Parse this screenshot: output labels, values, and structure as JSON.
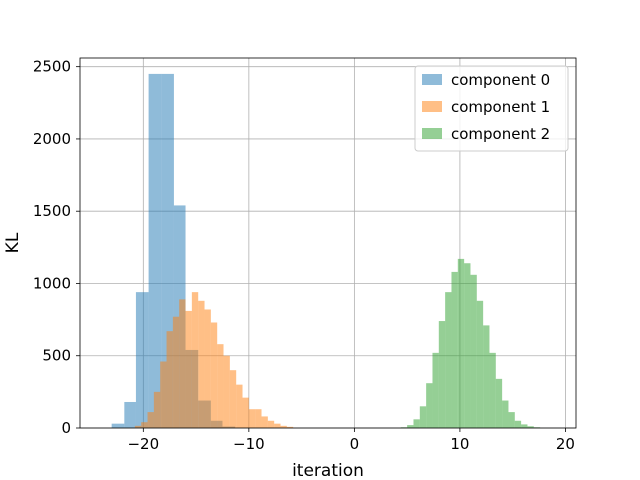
{
  "chart_data": {
    "type": "histogram",
    "title": "",
    "xlabel": "iteration",
    "ylabel": "KL",
    "xlim": [
      -26,
      21
    ],
    "ylim": [
      0,
      2560
    ],
    "xticks": [
      -20,
      -10,
      0,
      10,
      20
    ],
    "xtick_labels": [
      "−20",
      "−10",
      "0",
      "10",
      "20"
    ],
    "yticks": [
      0,
      500,
      1000,
      1500,
      2000,
      2500
    ],
    "ytick_labels": [
      "0",
      "500",
      "1000",
      "1500",
      "2000",
      "2500"
    ],
    "grid": true,
    "legend_position": "top-right",
    "alpha": 0.5,
    "series": [
      {
        "name": "component 0",
        "color": "#1f77b4",
        "bins": [
          {
            "x0": -23.0,
            "x1": -21.8,
            "count": 30
          },
          {
            "x0": -21.8,
            "x1": -20.7,
            "count": 180
          },
          {
            "x0": -20.7,
            "x1": -19.5,
            "count": 940
          },
          {
            "x0": -19.5,
            "x1": -18.3,
            "count": 2450
          },
          {
            "x0": -18.3,
            "x1": -17.1,
            "count": 2450
          },
          {
            "x0": -17.1,
            "x1": -16.0,
            "count": 1540
          },
          {
            "x0": -16.0,
            "x1": -14.8,
            "count": 540
          },
          {
            "x0": -14.8,
            "x1": -13.6,
            "count": 190
          },
          {
            "x0": -13.6,
            "x1": -12.5,
            "count": 50
          },
          {
            "x0": -12.5,
            "x1": -11.3,
            "count": 10
          }
        ]
      },
      {
        "name": "component 1",
        "color": "#ff7f0e",
        "bins": [
          {
            "x0": -20.8,
            "x1": -20.2,
            "count": 15
          },
          {
            "x0": -20.2,
            "x1": -19.6,
            "count": 40
          },
          {
            "x0": -19.6,
            "x1": -19.0,
            "count": 110
          },
          {
            "x0": -19.0,
            "x1": -18.4,
            "count": 250
          },
          {
            "x0": -18.4,
            "x1": -17.8,
            "count": 460
          },
          {
            "x0": -17.8,
            "x1": -17.2,
            "count": 670
          },
          {
            "x0": -17.2,
            "x1": -16.6,
            "count": 770
          },
          {
            "x0": -16.6,
            "x1": -16.0,
            "count": 890
          },
          {
            "x0": -16.0,
            "x1": -15.4,
            "count": 810
          },
          {
            "x0": -15.4,
            "x1": -14.8,
            "count": 940
          },
          {
            "x0": -14.8,
            "x1": -14.2,
            "count": 880
          },
          {
            "x0": -14.2,
            "x1": -13.6,
            "count": 820
          },
          {
            "x0": -13.6,
            "x1": -13.0,
            "count": 730
          },
          {
            "x0": -13.0,
            "x1": -12.4,
            "count": 580
          },
          {
            "x0": -12.4,
            "x1": -11.8,
            "count": 500
          },
          {
            "x0": -11.8,
            "x1": -11.2,
            "count": 400
          },
          {
            "x0": -11.2,
            "x1": -10.6,
            "count": 300
          },
          {
            "x0": -10.6,
            "x1": -10.0,
            "count": 210
          },
          {
            "x0": -10.0,
            "x1": -9.4,
            "count": 130
          },
          {
            "x0": -9.4,
            "x1": -8.8,
            "count": 130
          },
          {
            "x0": -8.8,
            "x1": -8.2,
            "count": 80
          },
          {
            "x0": -8.2,
            "x1": -7.6,
            "count": 50
          },
          {
            "x0": -7.6,
            "x1": -7.0,
            "count": 30
          },
          {
            "x0": -7.0,
            "x1": -6.4,
            "count": 15
          },
          {
            "x0": -6.4,
            "x1": -5.8,
            "count": 8
          }
        ]
      },
      {
        "name": "component 2",
        "color": "#2ca02c",
        "bins": [
          {
            "x0": 4.4,
            "x1": 5.0,
            "count": 5
          },
          {
            "x0": 5.0,
            "x1": 5.6,
            "count": 20
          },
          {
            "x0": 5.6,
            "x1": 6.2,
            "count": 60
          },
          {
            "x0": 6.2,
            "x1": 6.8,
            "count": 150
          },
          {
            "x0": 6.8,
            "x1": 7.4,
            "count": 310
          },
          {
            "x0": 7.4,
            "x1": 8.0,
            "count": 520
          },
          {
            "x0": 8.0,
            "x1": 8.6,
            "count": 740
          },
          {
            "x0": 8.6,
            "x1": 9.2,
            "count": 940
          },
          {
            "x0": 9.2,
            "x1": 9.8,
            "count": 1080
          },
          {
            "x0": 9.8,
            "x1": 10.4,
            "count": 1170
          },
          {
            "x0": 10.4,
            "x1": 11.0,
            "count": 1140
          },
          {
            "x0": 11.0,
            "x1": 11.6,
            "count": 1060
          },
          {
            "x0": 11.6,
            "x1": 12.2,
            "count": 880
          },
          {
            "x0": 12.2,
            "x1": 12.8,
            "count": 710
          },
          {
            "x0": 12.8,
            "x1": 13.4,
            "count": 520
          },
          {
            "x0": 13.4,
            "x1": 14.0,
            "count": 340
          },
          {
            "x0": 14.0,
            "x1": 14.6,
            "count": 190
          },
          {
            "x0": 14.6,
            "x1": 15.2,
            "count": 110
          },
          {
            "x0": 15.2,
            "x1": 15.8,
            "count": 50
          },
          {
            "x0": 15.8,
            "x1": 16.4,
            "count": 25
          },
          {
            "x0": 16.4,
            "x1": 17.0,
            "count": 12
          },
          {
            "x0": 17.0,
            "x1": 17.6,
            "count": 5
          }
        ]
      }
    ]
  }
}
